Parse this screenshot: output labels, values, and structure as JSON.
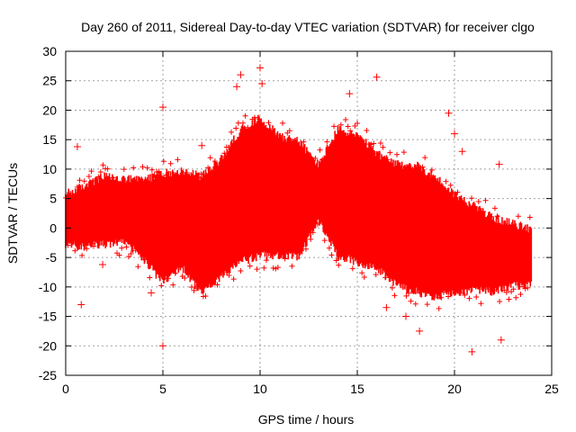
{
  "chart_data": {
    "type": "scatter",
    "title": "Day 260 of 2011, Sidereal Day-to-day VTEC variation (SDTVAR) for receiver clgo",
    "xlabel": "GPS time / hours",
    "ylabel": "SDTVAR / TECUs",
    "xlim": [
      0,
      25
    ],
    "ylim": [
      -25,
      30
    ],
    "grid": true,
    "marker": "+",
    "color": "#ff0000",
    "x_ticks": [
      0,
      5,
      10,
      15,
      20,
      25
    ],
    "y_ticks": [
      -25,
      -20,
      -15,
      -10,
      -5,
      0,
      5,
      10,
      15,
      20,
      25,
      30
    ],
    "envelope": [
      {
        "x": 0.0,
        "min": -2.0,
        "max": 5.0
      },
      {
        "x": 1.0,
        "min": -2.5,
        "max": 6.5
      },
      {
        "x": 2.0,
        "min": -2.0,
        "max": 8.0
      },
      {
        "x": 3.0,
        "min": -1.5,
        "max": 7.5
      },
      {
        "x": 4.0,
        "min": -4.5,
        "max": 7.5
      },
      {
        "x": 5.0,
        "min": -8.5,
        "max": 8.5
      },
      {
        "x": 6.0,
        "min": -6.0,
        "max": 9.0
      },
      {
        "x": 7.0,
        "min": -10.5,
        "max": 8.0
      },
      {
        "x": 8.0,
        "min": -7.5,
        "max": 11.0
      },
      {
        "x": 9.0,
        "min": -5.0,
        "max": 16.0
      },
      {
        "x": 10.0,
        "min": -4.0,
        "max": 18.0
      },
      {
        "x": 11.0,
        "min": -4.0,
        "max": 15.0
      },
      {
        "x": 12.0,
        "min": -4.0,
        "max": 14.0
      },
      {
        "x": 13.0,
        "min": 2.0,
        "max": 10.0
      },
      {
        "x": 14.0,
        "min": -4.0,
        "max": 16.0
      },
      {
        "x": 15.0,
        "min": -5.0,
        "max": 15.0
      },
      {
        "x": 16.0,
        "min": -6.0,
        "max": 12.0
      },
      {
        "x": 17.0,
        "min": -9.0,
        "max": 10.0
      },
      {
        "x": 18.0,
        "min": -10.0,
        "max": 10.0
      },
      {
        "x": 19.0,
        "min": -11.0,
        "max": 8.0
      },
      {
        "x": 20.0,
        "min": -10.0,
        "max": 5.0
      },
      {
        "x": 21.0,
        "min": -10.0,
        "max": 3.0
      },
      {
        "x": 22.0,
        "min": -10.0,
        "max": 1.0
      },
      {
        "x": 23.0,
        "min": -9.0,
        "max": 0.0
      },
      {
        "x": 24.0,
        "min": -9.0,
        "max": -1.0
      }
    ],
    "outliers": [
      {
        "x": 0.6,
        "y": 13.8
      },
      {
        "x": 0.8,
        "y": -13.0
      },
      {
        "x": 1.9,
        "y": -6.2
      },
      {
        "x": 4.4,
        "y": -11.0
      },
      {
        "x": 5.0,
        "y": 20.5
      },
      {
        "x": 5.0,
        "y": -20.0
      },
      {
        "x": 7.0,
        "y": 14.0
      },
      {
        "x": 8.8,
        "y": 24.0
      },
      {
        "x": 9.0,
        "y": 26.0
      },
      {
        "x": 10.0,
        "y": 27.2
      },
      {
        "x": 10.1,
        "y": 24.5
      },
      {
        "x": 14.6,
        "y": 22.8
      },
      {
        "x": 16.0,
        "y": 25.6
      },
      {
        "x": 19.7,
        "y": 19.5
      },
      {
        "x": 20.0,
        "y": 16.0
      },
      {
        "x": 20.4,
        "y": 13.0
      },
      {
        "x": 22.3,
        "y": 10.8
      },
      {
        "x": 22.4,
        "y": -19.0
      },
      {
        "x": 20.9,
        "y": -21.0
      },
      {
        "x": 16.5,
        "y": -13.5
      },
      {
        "x": 17.5,
        "y": -15.0
      },
      {
        "x": 18.2,
        "y": -17.5
      }
    ]
  }
}
